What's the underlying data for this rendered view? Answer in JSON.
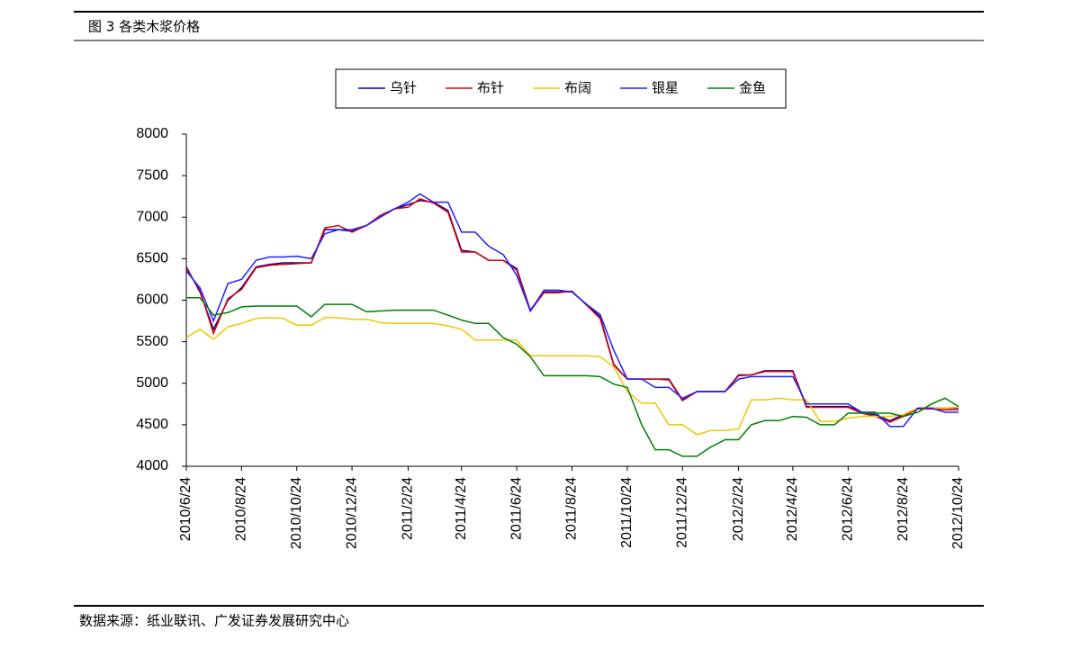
{
  "chart_data": {
    "type": "line",
    "title": "图 3 各类木浆价格",
    "source": "数据来源：纸业联讯、广发证券发展研究中心",
    "x": [
      "2010/6/24",
      "2010/7/9",
      "2010/7/24",
      "2010/8/9",
      "2010/8/24",
      "2010/9/9",
      "2010/9/24",
      "2010/10/9",
      "2010/10/24",
      "2010/11/9",
      "2010/11/24",
      "2010/12/9",
      "2010/12/24",
      "2011/1/9",
      "2011/1/24",
      "2011/2/9",
      "2011/2/24",
      "2011/3/9",
      "2011/3/24",
      "2011/4/9",
      "2011/4/24",
      "2011/5/9",
      "2011/5/24",
      "2011/6/9",
      "2011/6/24",
      "2011/7/9",
      "2011/7/24",
      "2011/8/9",
      "2011/8/24",
      "2011/9/9",
      "2011/9/24",
      "2011/10/9",
      "2011/10/24",
      "2011/11/9",
      "2011/11/24",
      "2011/12/9",
      "2011/12/24",
      "2012/1/9",
      "2012/1/24",
      "2012/2/9",
      "2012/2/24",
      "2012/3/9",
      "2012/3/24",
      "2012/4/9",
      "2012/4/24",
      "2012/5/9",
      "2012/5/24",
      "2012/6/9",
      "2012/6/24",
      "2012/7/9",
      "2012/7/24",
      "2012/8/9",
      "2012/8/24",
      "2012/9/9",
      "2012/9/24",
      "2012/10/9",
      "2012/10/24"
    ],
    "series": [
      {
        "name": "乌针",
        "color": "#0000a0",
        "values": [
          6400,
          6100,
          5650,
          6000,
          6150,
          6400,
          6430,
          6450,
          6450,
          6450,
          6850,
          6850,
          6830,
          6900,
          7000,
          7100,
          7150,
          7200,
          7180,
          7080,
          6600,
          6580,
          6480,
          6480,
          6380,
          5880,
          6100,
          6100,
          6100,
          5950,
          5800,
          5230,
          5050,
          5050,
          5050,
          5050,
          4800,
          4900,
          4900,
          4900,
          5100,
          5100,
          5150,
          5150,
          5150,
          4720,
          4720,
          4720,
          4720,
          4650,
          4620,
          4550,
          4620,
          4700,
          4700,
          4700,
          4700
        ]
      },
      {
        "name": "布针",
        "color": "#e00000",
        "values": [
          6380,
          6120,
          5600,
          6020,
          6130,
          6390,
          6420,
          6430,
          6440,
          6450,
          6870,
          6900,
          6820,
          6900,
          7020,
          7100,
          7120,
          7220,
          7170,
          7060,
          6580,
          6580,
          6480,
          6480,
          6360,
          5870,
          6090,
          6090,
          6110,
          5940,
          5780,
          5220,
          5050,
          5050,
          5050,
          5040,
          4790,
          4900,
          4900,
          4900,
          5090,
          5100,
          5140,
          5140,
          5140,
          4710,
          4710,
          4710,
          4710,
          4640,
          4600,
          4530,
          4600,
          4690,
          4690,
          4680,
          4680
        ]
      },
      {
        "name": "布阔",
        "color": "#f2c600",
        "values": [
          5550,
          5650,
          5530,
          5680,
          5720,
          5780,
          5790,
          5780,
          5700,
          5700,
          5790,
          5790,
          5770,
          5770,
          5730,
          5720,
          5720,
          5720,
          5720,
          5690,
          5650,
          5520,
          5520,
          5520,
          5520,
          5330,
          5330,
          5330,
          5330,
          5330,
          5320,
          5200,
          4900,
          4760,
          4760,
          4500,
          4500,
          4380,
          4430,
          4430,
          4450,
          4800,
          4800,
          4820,
          4800,
          4800,
          4540,
          4540,
          4580,
          4600,
          4600,
          4600,
          4620,
          4700,
          4700,
          4700,
          4710
        ]
      },
      {
        "name": "银星",
        "color": "#2020ff",
        "values": [
          6350,
          6150,
          5750,
          6200,
          6250,
          6480,
          6520,
          6520,
          6530,
          6500,
          6800,
          6850,
          6850,
          6900,
          7000,
          7100,
          7180,
          7280,
          7180,
          7180,
          6820,
          6820,
          6650,
          6550,
          6300,
          5870,
          6120,
          6120,
          6100,
          5950,
          5830,
          5400,
          5050,
          5050,
          4950,
          4950,
          4820,
          4900,
          4900,
          4900,
          5050,
          5080,
          5080,
          5080,
          5080,
          4750,
          4750,
          4750,
          4750,
          4650,
          4650,
          4480,
          4480,
          4700,
          4700,
          4650,
          4650
        ]
      },
      {
        "name": "金鱼",
        "color": "#008000",
        "values": [
          6030,
          6030,
          5820,
          5850,
          5920,
          5930,
          5930,
          5930,
          5930,
          5800,
          5950,
          5950,
          5950,
          5860,
          5870,
          5880,
          5880,
          5880,
          5880,
          5820,
          5760,
          5720,
          5720,
          5550,
          5470,
          5320,
          5090,
          5090,
          5090,
          5090,
          5080,
          4990,
          4950,
          4500,
          4200,
          4200,
          4120,
          4120,
          4230,
          4320,
          4320,
          4500,
          4550,
          4550,
          4600,
          4590,
          4500,
          4500,
          4640,
          4640,
          4640,
          4640,
          4600,
          4650,
          4750,
          4820,
          4720
        ]
      }
    ],
    "xlim": [
      "2010/6/24",
      "2012/10/24"
    ],
    "xticks": [
      "2010/6/24",
      "2010/8/24",
      "2010/10/24",
      "2010/12/24",
      "2011/2/24",
      "2011/4/24",
      "2011/6/24",
      "2011/8/24",
      "2011/10/24",
      "2011/12/24",
      "2012/2/24",
      "2012/4/24",
      "2012/6/24",
      "2012/8/24",
      "2012/10/24"
    ],
    "ylim": [
      4000,
      8000
    ],
    "yticks": [
      4000,
      4500,
      5000,
      5500,
      6000,
      6500,
      7000,
      7500,
      8000
    ],
    "legend": "top"
  }
}
